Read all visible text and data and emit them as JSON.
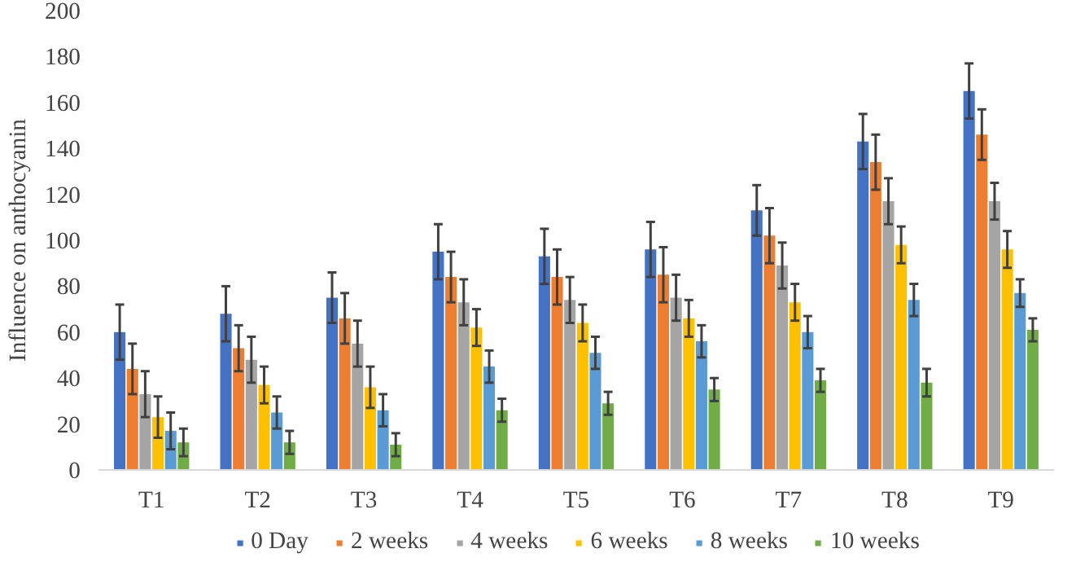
{
  "chart_data": {
    "type": "bar",
    "ylabel": "Influence on anthocyanin",
    "categories": [
      "T1",
      "T2",
      "T3",
      "T4",
      "T5",
      "T6",
      "T7",
      "T8",
      "T9"
    ],
    "ylim": [
      0,
      200
    ],
    "yticks": [
      0,
      20,
      40,
      60,
      80,
      100,
      120,
      140,
      160,
      180,
      200
    ],
    "grid": false,
    "legend": "bottom",
    "series": [
      {
        "name": "0 Day",
        "color": "#4472c4",
        "values": [
          60,
          68,
          75,
          95,
          93,
          96,
          113,
          143,
          165
        ],
        "errors": [
          12,
          12,
          11,
          12,
          12,
          12,
          11,
          12,
          12
        ]
      },
      {
        "name": "2 weeks",
        "color": "#ed7d31",
        "values": [
          44,
          53,
          66,
          84,
          84,
          85,
          102,
          134,
          146
        ],
        "errors": [
          11,
          10,
          11,
          11,
          12,
          12,
          12,
          12,
          11
        ]
      },
      {
        "name": "4 weeks",
        "color": "#a5a5a5",
        "values": [
          33,
          48,
          55,
          73,
          74,
          75,
          89,
          117,
          117
        ],
        "errors": [
          10,
          10,
          10,
          10,
          10,
          10,
          10,
          10,
          8
        ]
      },
      {
        "name": "6 weeks",
        "color": "#ffc000",
        "values": [
          23,
          37,
          36,
          62,
          64,
          66,
          73,
          98,
          96
        ],
        "errors": [
          9,
          8,
          9,
          8,
          8,
          8,
          8,
          8,
          8
        ]
      },
      {
        "name": "8 weeks",
        "color": "#5b9bd5",
        "values": [
          17,
          25,
          26,
          45,
          51,
          56,
          60,
          74,
          77
        ],
        "errors": [
          8,
          7,
          7,
          7,
          7,
          7,
          7,
          7,
          6
        ]
      },
      {
        "name": "10 weeks",
        "color": "#70ad47",
        "values": [
          12,
          12,
          11,
          26,
          29,
          35,
          39,
          38,
          61
        ],
        "errors": [
          6,
          5,
          5,
          5,
          5,
          5,
          5,
          6,
          5
        ]
      }
    ]
  }
}
